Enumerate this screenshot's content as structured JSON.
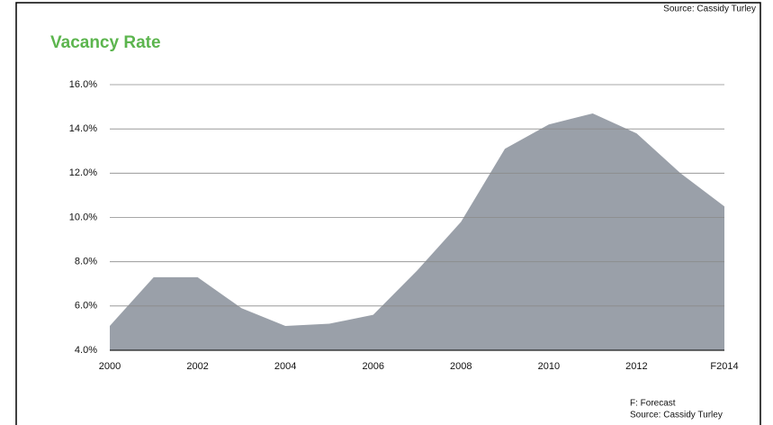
{
  "chart_data": {
    "type": "area",
    "title": "Vacancy Rate",
    "source": "Source: Cassidy Turley",
    "footnote": "F: Forecast",
    "categories": [
      "2000",
      null,
      "2002",
      null,
      "2004",
      null,
      "2006",
      null,
      "2008",
      null,
      "2010",
      null,
      "2012",
      null,
      "F2014"
    ],
    "values": [
      5.1,
      7.3,
      7.3,
      5.9,
      5.1,
      5.2,
      5.6,
      7.6,
      9.8,
      13.1,
      14.2,
      14.7,
      13.8,
      12.0,
      10.5
    ],
    "color": "#9aa0a9",
    "ylim": [
      4,
      16
    ],
    "yticks": [
      {
        "value": 4,
        "label": "4.0%"
      },
      {
        "value": 6,
        "label": "6.0%"
      },
      {
        "value": 8,
        "label": "8.0%"
      },
      {
        "value": 10,
        "label": "10.0%"
      },
      {
        "value": 12,
        "label": "12.0%"
      },
      {
        "value": 14,
        "label": "14.0%"
      },
      {
        "value": 16,
        "label": "16.0%"
      }
    ],
    "grid": true
  }
}
